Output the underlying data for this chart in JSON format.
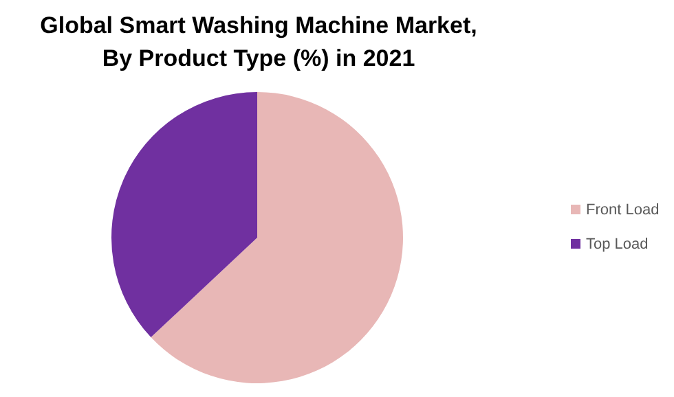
{
  "chart_data": {
    "type": "pie",
    "title": "Global Smart Washing Machine Market, By Product Type (%) in 2021",
    "categories": [
      "Front Load",
      "Top Load"
    ],
    "values": [
      63,
      37
    ],
    "colors": [
      "#e8b7b6",
      "#7030a0"
    ],
    "legend": "right"
  }
}
